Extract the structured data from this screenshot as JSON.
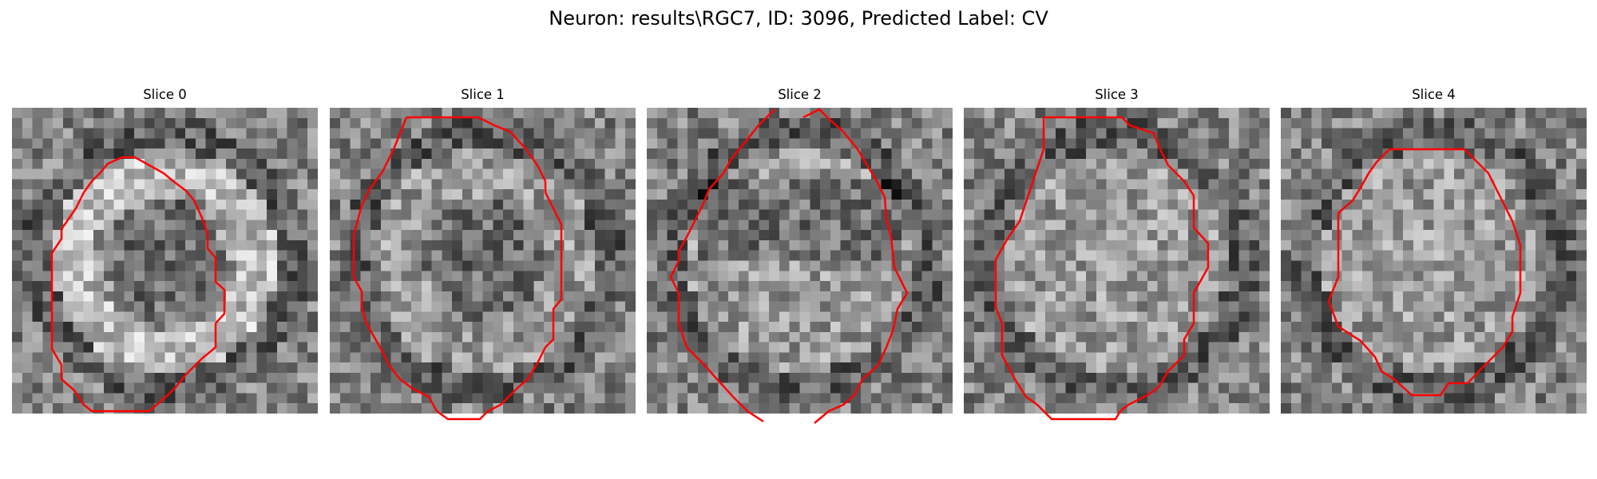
{
  "figure": {
    "title": "Neuron: results\\RGC7, ID: 3096, Predicted Label: CV"
  },
  "panels": [
    {
      "title": "Slice 0",
      "bright_ring": true,
      "dark_blob": true,
      "dark_band": false
    },
    {
      "title": "Slice 1",
      "bright_ring": false,
      "dark_blob": true,
      "dark_band": false
    },
    {
      "title": "Slice 2",
      "bright_ring": false,
      "dark_blob": false,
      "dark_band": true
    },
    {
      "title": "Slice 3",
      "bright_ring": false,
      "dark_blob": false,
      "dark_band": false
    },
    {
      "title": "Slice 4",
      "bright_ring": false,
      "dark_blob": false,
      "dark_band": false
    }
  ],
  "colors": {
    "contour": "#ff0000",
    "background": "#ffffff"
  },
  "colormap": "gray"
}
